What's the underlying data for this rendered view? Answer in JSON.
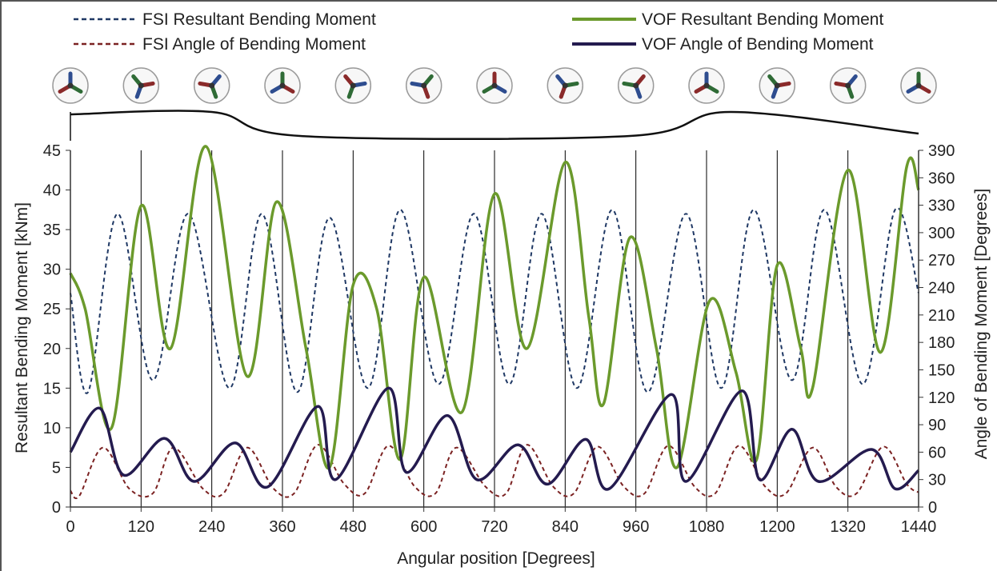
{
  "chart_data": {
    "type": "line",
    "xlabel": "Angular position [Degrees]",
    "ylabel": "Resultant Bending Moment [kNm]",
    "y2label": "Angle of Bending Moment [Degrees]",
    "xlim": [
      0,
      1440
    ],
    "ylim": [
      0,
      45
    ],
    "y2lim": [
      0,
      390
    ],
    "x_ticks": [
      0,
      120,
      240,
      360,
      480,
      600,
      720,
      840,
      960,
      1080,
      1200,
      1320,
      1440
    ],
    "y_ticks": [
      0,
      5,
      10,
      15,
      20,
      25,
      30,
      35,
      40,
      45
    ],
    "y2_ticks": [
      0,
      30,
      60,
      90,
      120,
      150,
      180,
      210,
      240,
      270,
      300,
      330,
      360,
      390
    ],
    "grid": "vertical lines at x ticks",
    "legend_position": "top",
    "series": [
      {
        "name": "FSI Resultant Bending Moment",
        "axis": "left",
        "color": "#1f3864",
        "style": "dashed",
        "points": [
          [
            0,
            27
          ],
          [
            30,
            14.5
          ],
          [
            80,
            37
          ],
          [
            140,
            16
          ],
          [
            200,
            37
          ],
          [
            270,
            15
          ],
          [
            325,
            37
          ],
          [
            385,
            14.5
          ],
          [
            440,
            36.5
          ],
          [
            505,
            15
          ],
          [
            560,
            37.5
          ],
          [
            625,
            15.5
          ],
          [
            685,
            37
          ],
          [
            745,
            15.5
          ],
          [
            800,
            37
          ],
          [
            860,
            15
          ],
          [
            920,
            37.5
          ],
          [
            980,
            14.5
          ],
          [
            1045,
            37
          ],
          [
            1105,
            15
          ],
          [
            1160,
            37.5
          ],
          [
            1225,
            16
          ],
          [
            1280,
            37.5
          ],
          [
            1345,
            15.5
          ],
          [
            1400,
            37.5
          ],
          [
            1440,
            27
          ]
        ]
      },
      {
        "name": "FSI Angle of Bending Moment",
        "axis": "right",
        "color": "#7b2222",
        "style": "dashed",
        "points": [
          [
            0,
            18
          ],
          [
            15,
            12
          ],
          [
            55,
            65
          ],
          [
            100,
            20
          ],
          [
            140,
            15
          ],
          [
            175,
            65
          ],
          [
            225,
            20
          ],
          [
            260,
            15
          ],
          [
            300,
            65
          ],
          [
            345,
            20
          ],
          [
            380,
            15
          ],
          [
            420,
            68
          ],
          [
            465,
            25
          ],
          [
            500,
            15
          ],
          [
            540,
            67
          ],
          [
            585,
            22
          ],
          [
            620,
            15
          ],
          [
            655,
            65
          ],
          [
            705,
            22
          ],
          [
            740,
            15
          ],
          [
            775,
            68
          ],
          [
            820,
            22
          ],
          [
            855,
            15
          ],
          [
            895,
            66
          ],
          [
            940,
            22
          ],
          [
            975,
            15
          ],
          [
            1015,
            67
          ],
          [
            1060,
            22
          ],
          [
            1095,
            15
          ],
          [
            1135,
            67
          ],
          [
            1180,
            22
          ],
          [
            1215,
            15
          ],
          [
            1260,
            65
          ],
          [
            1300,
            22
          ],
          [
            1335,
            15
          ],
          [
            1380,
            66
          ],
          [
            1420,
            25
          ],
          [
            1440,
            16
          ]
        ]
      },
      {
        "name": "VOF Resultant Bending Moment",
        "axis": "left",
        "color": "#6b9a2c",
        "style": "solid",
        "points": [
          [
            0,
            29.5
          ],
          [
            25,
            25
          ],
          [
            70,
            10
          ],
          [
            120,
            38
          ],
          [
            170,
            20
          ],
          [
            230,
            45.5
          ],
          [
            300,
            16.5
          ],
          [
            350,
            38.5
          ],
          [
            400,
            20
          ],
          [
            440,
            5
          ],
          [
            480,
            28
          ],
          [
            520,
            25
          ],
          [
            560,
            6
          ],
          [
            600,
            29
          ],
          [
            665,
            12
          ],
          [
            720,
            39.5
          ],
          [
            775,
            20
          ],
          [
            840,
            43.5
          ],
          [
            880,
            24
          ],
          [
            905,
            13
          ],
          [
            950,
            34
          ],
          [
            995,
            20
          ],
          [
            1030,
            5
          ],
          [
            1085,
            26
          ],
          [
            1130,
            17
          ],
          [
            1165,
            6
          ],
          [
            1200,
            30.5
          ],
          [
            1240,
            20
          ],
          [
            1260,
            15
          ],
          [
            1320,
            42.5
          ],
          [
            1375,
            19.5
          ],
          [
            1420,
            43
          ],
          [
            1440,
            40
          ]
        ]
      },
      {
        "name": "VOF Angle of Bending Moment",
        "axis": "right",
        "color": "#241b4f",
        "style": "solid",
        "points": [
          [
            0,
            60
          ],
          [
            50,
            108
          ],
          [
            90,
            35
          ],
          [
            160,
            75
          ],
          [
            210,
            28
          ],
          [
            280,
            70
          ],
          [
            335,
            22
          ],
          [
            420,
            110
          ],
          [
            450,
            30
          ],
          [
            540,
            130
          ],
          [
            570,
            38
          ],
          [
            640,
            100
          ],
          [
            690,
            30
          ],
          [
            760,
            68
          ],
          [
            810,
            25
          ],
          [
            875,
            74
          ],
          [
            915,
            20
          ],
          [
            1020,
            123
          ],
          [
            1045,
            28
          ],
          [
            1140,
            127
          ],
          [
            1170,
            30
          ],
          [
            1225,
            85
          ],
          [
            1270,
            28
          ],
          [
            1360,
            63
          ],
          [
            1400,
            20
          ],
          [
            1440,
            40
          ]
        ]
      }
    ]
  },
  "legend": {
    "fsi_moment": "FSI Resultant Bending Moment",
    "vof_moment": "VOF Resultant Bending Moment",
    "fsi_angle": "FSI Angle of Bending Moment",
    "vof_angle": "VOF Angle of Bending Moment"
  },
  "rotor_icons": {
    "icon": "three-blade-rotor-icon",
    "count": 13,
    "blade_colors": [
      "#2e4d8f",
      "#2f6b36",
      "#8a2a2a"
    ]
  },
  "wave_profile": {
    "icon": "wave-elevation-curve",
    "crests_at_degrees": [
      240,
      1120
    ],
    "troughs_at_degrees": [
      390,
      950
    ],
    "amplitude_fraction": 1.0
  }
}
